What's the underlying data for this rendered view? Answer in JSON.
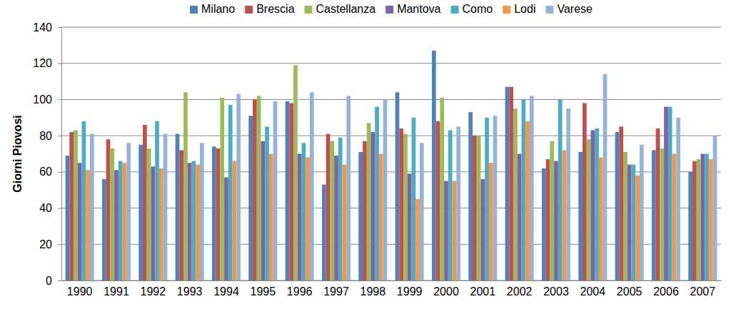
{
  "chart_data": {
    "type": "bar",
    "y_label": "Giorni Piovosi",
    "categories": [
      "1990",
      "1991",
      "1992",
      "1993",
      "1994",
      "1995",
      "1996",
      "1997",
      "1998",
      "1999",
      "2000",
      "2001",
      "2002",
      "2003",
      "2004",
      "2005",
      "2006",
      "2007"
    ],
    "series": [
      {
        "name": "Milano",
        "color": "#4f81bd",
        "values": [
          69,
          56,
          75,
          81,
          74,
          91,
          99,
          53,
          71,
          104,
          127,
          93,
          107,
          62,
          71,
          82,
          72,
          60
        ]
      },
      {
        "name": "Brescia",
        "color": "#c0504d",
        "values": [
          82,
          78,
          86,
          72,
          73,
          100,
          98,
          81,
          77,
          84,
          88,
          80,
          107,
          67,
          98,
          85,
          84,
          66
        ]
      },
      {
        "name": "Castellanza",
        "color": "#9bbb59",
        "values": [
          83,
          73,
          73,
          104,
          101,
          102,
          119,
          77,
          87,
          81,
          101,
          80,
          95,
          77,
          78,
          71,
          73,
          67
        ]
      },
      {
        "name": "Mantova",
        "color": "#8064a2",
        "values": [
          65,
          61,
          63,
          65,
          57,
          77,
          70,
          69,
          82,
          59,
          55,
          56,
          70,
          66,
          83,
          64,
          96,
          70
        ]
      },
      {
        "name": "Como",
        "color": "#4bacc6",
        "values": [
          88,
          66,
          88,
          66,
          97,
          85,
          76,
          79,
          96,
          90,
          83,
          90,
          100,
          100,
          84,
          64,
          96,
          70
        ]
      },
      {
        "name": "Lodi",
        "color": "#f79646",
        "values": [
          61,
          65,
          62,
          64,
          66,
          70,
          68,
          64,
          70,
          45,
          55,
          65,
          88,
          72,
          68,
          58,
          70,
          67
        ]
      },
      {
        "name": "Varese",
        "color": "#95b3d7",
        "values": [
          81,
          76,
          81,
          76,
          103,
          99,
          104,
          102,
          100,
          76,
          85,
          91,
          102,
          95,
          114,
          75,
          90,
          80
        ]
      }
    ],
    "ylim": [
      0,
      140
    ],
    "yticks": [
      0,
      20,
      40,
      60,
      80,
      100,
      120,
      140
    ],
    "grid": true,
    "legend": "top"
  }
}
